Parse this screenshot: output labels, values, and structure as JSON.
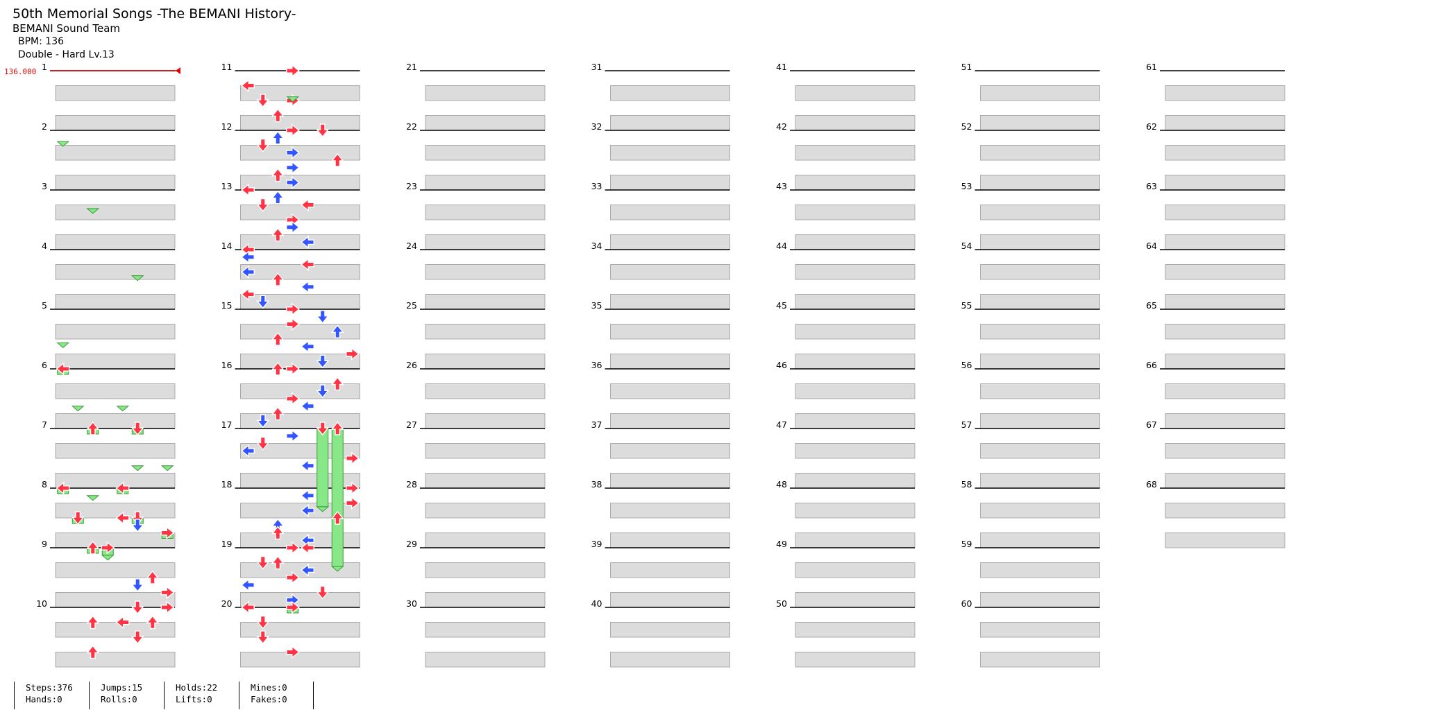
{
  "song": {
    "title": "50th Memorial Songs -The BEMANI History-",
    "artist": "BEMANI Sound Team",
    "bpm_text": "BPM: 136",
    "difficulty_text": "Double - Hard Lv.13"
  },
  "bpm_marker": "136.000",
  "measure_numbers": [
    "1",
    "2",
    "3",
    "4",
    "5",
    "6",
    "7",
    "8",
    "9",
    "10",
    "11",
    "12",
    "13",
    "14",
    "15",
    "16",
    "17",
    "18",
    "19",
    "20",
    "21",
    "22",
    "23",
    "24",
    "25",
    "26",
    "27",
    "28",
    "29",
    "30",
    "31",
    "32",
    "33",
    "34",
    "35",
    "36",
    "37",
    "38",
    "39",
    "40",
    "41",
    "42",
    "43",
    "44",
    "45",
    "46",
    "47",
    "48",
    "49",
    "50",
    "51",
    "52",
    "53",
    "54",
    "55",
    "56",
    "57",
    "58",
    "59",
    "60",
    "61",
    "62",
    "63",
    "64",
    "65",
    "66",
    "67",
    "68"
  ],
  "stats": {
    "steps": "Steps:376",
    "hands": "Hands:0",
    "jumps": "Jumps:15",
    "rolls": "Rolls:0",
    "holds": "Holds:22",
    "lifts": "Lifts:0",
    "mines": "Mines:0",
    "fakes": "Fakes:0"
  },
  "colors": {
    "quarter": "#ff3344",
    "eighth": "#3355ff",
    "sixteenth": "#ffee33",
    "hold": "#88e888",
    "bpm": "#e00000"
  },
  "notes": [
    [
      6,
      0,
      0,
      2,
      1.5
    ],
    [
      7,
      0,
      2,
      3,
      2.5
    ],
    [
      7,
      0,
      5,
      4,
      3.5
    ],
    [
      8,
      0,
      0,
      5,
      4.5
    ],
    [
      8,
      0,
      4,
      6,
      5
    ],
    [
      8,
      4,
      1,
      6,
      5
    ],
    [
      8,
      4,
      5,
      7,
      5
    ],
    [
      8,
      6,
      7,
      7,
      5
    ],
    [
      8,
      4,
      4,
      7,
      0
    ],
    [
      8,
      5,
      5,
      7,
      0
    ],
    [
      9,
      0,
      2,
      8,
      1
    ],
    [
      9,
      0,
      3,
      9,
      1
    ],
    [
      9,
      4,
      6,
      9,
      0
    ],
    [
      9,
      5,
      5,
      9,
      0
    ],
    [
      9,
      6,
      7,
      9,
      0
    ],
    [
      10,
      0,
      7,
      10,
      0
    ],
    [
      10,
      0,
      5,
      11,
      0
    ],
    [
      10,
      2,
      2,
      11,
      0
    ],
    [
      10,
      2,
      4,
      11,
      0
    ],
    [
      10,
      2,
      6,
      11,
      0
    ],
    [
      10,
      4,
      5,
      11,
      0
    ],
    [
      10,
      6,
      2,
      11,
      0
    ],
    [
      11,
      0,
      3,
      12,
      0
    ],
    [
      11,
      2,
      0,
      12,
      0
    ],
    [
      11,
      4,
      3,
      12,
      0
    ],
    [
      11,
      4,
      1,
      12,
      0
    ],
    [
      11,
      6,
      2,
      12,
      0
    ],
    [
      12,
      0,
      5,
      13,
      0
    ],
    [
      12,
      0,
      3,
      13,
      0
    ],
    [
      12,
      1,
      2,
      13,
      0
    ],
    [
      12,
      2,
      1,
      13,
      0
    ],
    [
      12,
      3,
      3,
      13,
      0
    ],
    [
      12,
      4,
      6,
      13,
      0
    ],
    [
      12,
      5,
      3,
      13,
      0
    ],
    [
      12,
      6,
      2,
      13,
      0
    ],
    [
      12,
      7,
      3,
      13,
      0
    ],
    [
      13,
      0,
      0,
      14,
      0
    ],
    [
      13,
      1,
      2,
      14,
      0
    ],
    [
      13,
      2,
      4,
      14,
      0
    ],
    [
      13,
      2,
      1,
      14,
      0
    ],
    [
      13,
      4,
      3,
      14,
      0
    ],
    [
      13,
      5,
      3,
      14,
      0
    ],
    [
      13,
      6,
      2,
      14,
      0
    ],
    [
      13,
      7,
      4,
      14,
      0
    ],
    [
      14,
      0,
      0,
      15,
      0
    ],
    [
      14,
      1,
      0,
      15,
      0
    ],
    [
      14,
      2,
      4,
      15,
      0
    ],
    [
      14,
      3,
      0,
      15,
      0
    ],
    [
      14,
      4,
      2,
      15,
      0
    ],
    [
      14,
      5,
      4,
      15,
      0
    ],
    [
      14,
      6,
      0,
      15,
      0
    ],
    [
      14,
      7,
      1,
      15,
      0
    ],
    [
      15,
      0,
      3,
      16,
      0
    ],
    [
      15,
      1,
      5,
      16,
      0
    ],
    [
      15,
      2,
      3,
      16,
      0
    ],
    [
      15,
      3,
      6,
      16,
      0
    ],
    [
      15,
      4,
      2,
      16,
      0
    ],
    [
      15,
      5,
      4,
      16,
      0
    ],
    [
      15,
      6,
      7,
      16,
      0
    ],
    [
      15,
      7,
      5,
      16,
      0
    ],
    [
      16,
      0,
      2,
      17,
      0
    ],
    [
      16,
      0,
      3,
      17,
      0
    ],
    [
      16,
      2,
      6,
      17,
      0
    ],
    [
      16,
      3,
      5,
      17,
      0
    ],
    [
      16,
      4,
      3,
      17,
      0
    ],
    [
      16,
      5,
      4,
      17,
      0
    ],
    [
      16,
      6,
      2,
      17,
      0
    ],
    [
      16,
      7,
      1,
      17,
      0
    ],
    [
      17,
      0,
      5,
      18,
      2.5
    ],
    [
      17,
      0,
      6,
      19,
      2.5
    ],
    [
      17,
      1,
      3,
      18,
      0
    ],
    [
      17,
      2,
      1,
      18,
      0
    ],
    [
      17,
      3,
      0,
      18,
      0
    ],
    [
      17,
      4,
      7,
      18,
      0
    ],
    [
      17,
      5,
      4,
      18,
      0
    ],
    [
      18,
      0,
      7,
      19,
      0
    ],
    [
      18,
      1,
      4,
      19,
      0
    ],
    [
      18,
      2,
      7,
      19,
      0
    ],
    [
      18,
      3,
      4,
      19,
      0
    ],
    [
      18,
      4,
      6,
      19,
      0
    ],
    [
      18,
      5,
      2,
      19,
      0
    ],
    [
      18,
      6,
      2,
      19,
      0
    ],
    [
      18,
      7,
      4,
      19,
      0
    ],
    [
      19,
      0,
      3,
      20,
      0
    ],
    [
      19,
      0,
      4,
      20,
      0
    ],
    [
      19,
      2,
      1,
      20,
      0
    ],
    [
      19,
      2,
      2,
      20,
      0
    ],
    [
      19,
      3,
      4,
      20,
      0
    ],
    [
      19,
      4,
      3,
      20,
      0
    ],
    [
      19,
      5,
      0,
      20,
      0
    ],
    [
      19,
      6,
      5,
      20,
      0
    ],
    [
      19,
      7,
      3,
      20,
      0
    ],
    [
      20,
      0,
      3,
      21,
      3.5
    ],
    [
      20,
      0,
      0,
      21,
      0
    ],
    [
      20,
      2,
      1,
      21,
      0
    ],
    [
      20,
      4,
      1,
      21,
      0
    ],
    [
      20,
      6,
      3,
      21,
      0
    ]
  ]
}
